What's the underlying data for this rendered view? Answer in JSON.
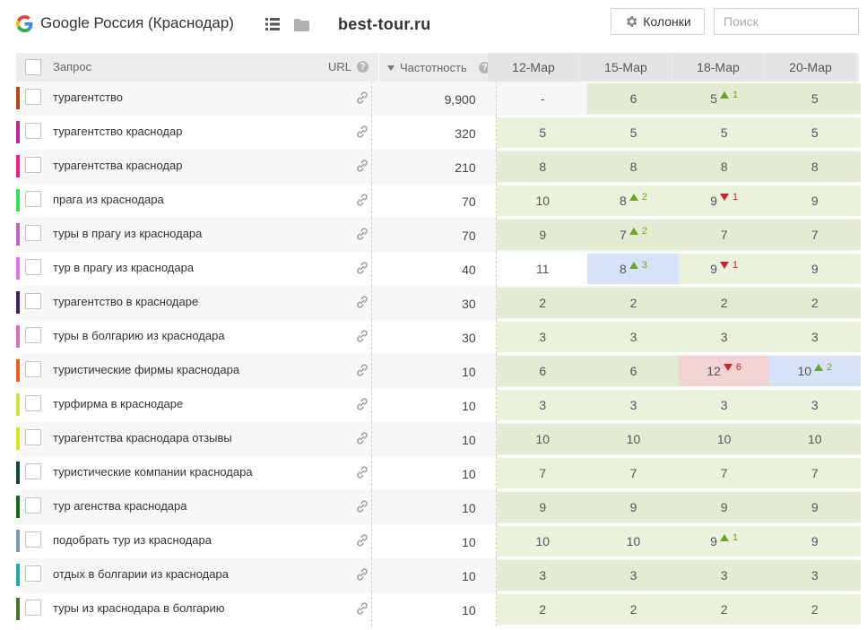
{
  "header": {
    "engine_title": "Google Россия (Краснодар)",
    "site": "best-tour.ru",
    "columns_button": "Колонки",
    "search_placeholder": "Поиск"
  },
  "table": {
    "col_query": "Запрос",
    "col_url": "URL",
    "col_freq": "Частотность",
    "dates": [
      "12-Мар",
      "15-Мар",
      "18-Мар",
      "20-Мар"
    ],
    "rows": [
      {
        "q": "турагентство",
        "f": "9,900",
        "color": "#b5470f",
        "cells": [
          {
            "v": "-",
            "bg": "plain"
          },
          {
            "v": "6",
            "bg": "green"
          },
          {
            "v": "5",
            "bg": "green",
            "d": "1",
            "dir": "up"
          },
          {
            "v": "5",
            "bg": "green"
          }
        ]
      },
      {
        "q": "турагентство краснодар",
        "f": "320",
        "color": "#c81fa0",
        "cells": [
          {
            "v": "5",
            "bg": "greenlt"
          },
          {
            "v": "5",
            "bg": "greenlt"
          },
          {
            "v": "5",
            "bg": "greenlt"
          },
          {
            "v": "5",
            "bg": "greenlt"
          }
        ]
      },
      {
        "q": "турагентства краснодар",
        "f": "210",
        "color": "#ef1b93",
        "cells": [
          {
            "v": "8",
            "bg": "green"
          },
          {
            "v": "8",
            "bg": "green"
          },
          {
            "v": "8",
            "bg": "green"
          },
          {
            "v": "8",
            "bg": "green"
          }
        ]
      },
      {
        "q": "прага из краснодара",
        "f": "70",
        "color": "#2fe35f",
        "cells": [
          {
            "v": "10",
            "bg": "greenlt"
          },
          {
            "v": "8",
            "bg": "greenlt",
            "d": "2",
            "dir": "up"
          },
          {
            "v": "9",
            "bg": "greenlt",
            "d": "1",
            "dir": "down"
          },
          {
            "v": "9",
            "bg": "greenlt"
          }
        ]
      },
      {
        "q": "туры в прагу из краснодара",
        "f": "70",
        "color": "#c45fbd",
        "cells": [
          {
            "v": "9",
            "bg": "green"
          },
          {
            "v": "7",
            "bg": "green",
            "d": "2",
            "dir": "up"
          },
          {
            "v": "7",
            "bg": "green"
          },
          {
            "v": "7",
            "bg": "green"
          }
        ]
      },
      {
        "q": "тур в прагу из краснодара",
        "f": "40",
        "color": "#e870e6",
        "cells": [
          {
            "v": "11",
            "bg": "plain"
          },
          {
            "v": "8",
            "bg": "blue",
            "d": "3",
            "dir": "up"
          },
          {
            "v": "9",
            "bg": "greenlt",
            "d": "1",
            "dir": "down"
          },
          {
            "v": "9",
            "bg": "greenlt"
          }
        ]
      },
      {
        "q": "турагентство в краснодаре",
        "f": "30",
        "color": "#3e1f63",
        "cells": [
          {
            "v": "2",
            "bg": "green"
          },
          {
            "v": "2",
            "bg": "green"
          },
          {
            "v": "2",
            "bg": "green"
          },
          {
            "v": "2",
            "bg": "green"
          }
        ]
      },
      {
        "q": "туры в болгарию из краснодара",
        "f": "30",
        "color": "#d86bc3",
        "cells": [
          {
            "v": "3",
            "bg": "greenlt"
          },
          {
            "v": "3",
            "bg": "greenlt"
          },
          {
            "v": "3",
            "bg": "greenlt"
          },
          {
            "v": "3",
            "bg": "greenlt"
          }
        ]
      },
      {
        "q": "туристические фирмы краснодара",
        "f": "10",
        "color": "#ef5a1f",
        "cells": [
          {
            "v": "6",
            "bg": "green"
          },
          {
            "v": "6",
            "bg": "green"
          },
          {
            "v": "12",
            "bg": "red",
            "d": "6",
            "dir": "down"
          },
          {
            "v": "10",
            "bg": "blue",
            "d": "2",
            "dir": "up"
          }
        ]
      },
      {
        "q": "турфирма в краснодаре",
        "f": "10",
        "color": "#c6e83a",
        "cells": [
          {
            "v": "3",
            "bg": "greenlt"
          },
          {
            "v": "3",
            "bg": "greenlt"
          },
          {
            "v": "3",
            "bg": "greenlt"
          },
          {
            "v": "3",
            "bg": "greenlt"
          }
        ]
      },
      {
        "q": "турагентства краснодара отзывы",
        "f": "10",
        "color": "#d9e21d",
        "cells": [
          {
            "v": "10",
            "bg": "green"
          },
          {
            "v": "10",
            "bg": "green"
          },
          {
            "v": "10",
            "bg": "green"
          },
          {
            "v": "10",
            "bg": "green"
          }
        ]
      },
      {
        "q": "туристические компании краснодара",
        "f": "10",
        "color": "#0f4a3a",
        "cells": [
          {
            "v": "7",
            "bg": "greenlt"
          },
          {
            "v": "7",
            "bg": "greenlt"
          },
          {
            "v": "7",
            "bg": "greenlt"
          },
          {
            "v": "7",
            "bg": "greenlt"
          }
        ]
      },
      {
        "q": "тур агенства краснодара",
        "f": "10",
        "color": "#166b18",
        "cells": [
          {
            "v": "9",
            "bg": "green"
          },
          {
            "v": "9",
            "bg": "green"
          },
          {
            "v": "9",
            "bg": "green"
          },
          {
            "v": "9",
            "bg": "green"
          }
        ]
      },
      {
        "q": "подобрать тур из краснодара",
        "f": "10",
        "color": "#7d9ab5",
        "cells": [
          {
            "v": "10",
            "bg": "greenlt"
          },
          {
            "v": "10",
            "bg": "greenlt"
          },
          {
            "v": "9",
            "bg": "greenlt",
            "d": "1",
            "dir": "up"
          },
          {
            "v": "9",
            "bg": "greenlt"
          }
        ]
      },
      {
        "q": "отдых в болгарии из краснодара",
        "f": "10",
        "color": "#22a8b0",
        "cells": [
          {
            "v": "3",
            "bg": "green"
          },
          {
            "v": "3",
            "bg": "green"
          },
          {
            "v": "3",
            "bg": "green"
          },
          {
            "v": "3",
            "bg": "green"
          }
        ]
      },
      {
        "q": "туры из краснодара в болгарию",
        "f": "10",
        "color": "#3d7a22",
        "cells": [
          {
            "v": "2",
            "bg": "greenlt"
          },
          {
            "v": "2",
            "bg": "greenlt"
          },
          {
            "v": "2",
            "bg": "greenlt"
          },
          {
            "v": "2",
            "bg": "greenlt"
          }
        ]
      }
    ]
  }
}
